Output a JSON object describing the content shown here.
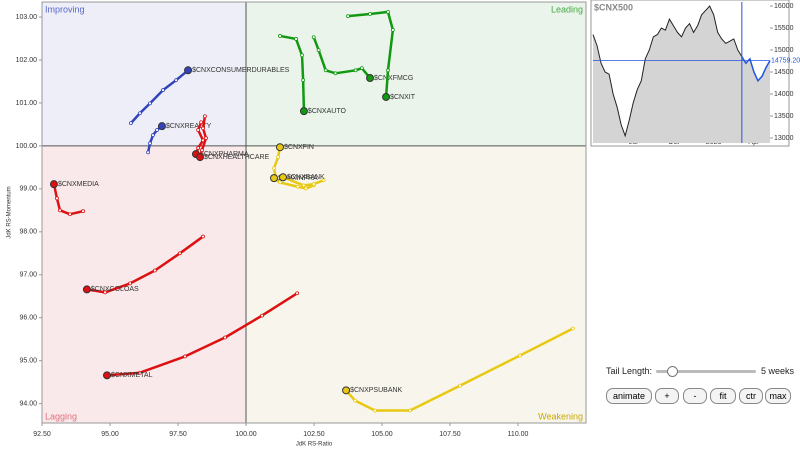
{
  "chart_data": [
    {
      "type": "rrg",
      "x_label": "JdK RS-Ratio",
      "y_label": "JdK RS-Momentum",
      "quadrants": {
        "improving": "Improving",
        "leading": "Leading",
        "lagging": "Lagging",
        "weakening": "Weakening"
      },
      "center_x": 100,
      "center_y": 100,
      "xlim": [
        92.5,
        112.5
      ],
      "ylim": [
        93.55,
        103.35
      ],
      "xticks": [
        {
          "value": 92.5,
          "label": "92.50"
        },
        {
          "value": 95,
          "label": "95.00"
        },
        {
          "value": 97.5,
          "label": "97.50"
        },
        {
          "value": 100,
          "label": "100.00"
        },
        {
          "value": 102.5,
          "label": "102.50"
        },
        {
          "value": 105,
          "label": "105.00"
        },
        {
          "value": 107.5,
          "label": "107.50"
        },
        {
          "value": 110,
          "label": "110.00"
        }
      ],
      "yticks": [
        {
          "value": 94,
          "label": "94.00"
        },
        {
          "value": 95,
          "label": "95.00"
        },
        {
          "value": 96,
          "label": "96.00"
        },
        {
          "value": 97,
          "label": "97.00"
        },
        {
          "value": 98,
          "label": "98.00"
        },
        {
          "value": 99,
          "label": "99.00"
        },
        {
          "value": 100,
          "label": "100.00"
        },
        {
          "value": 101,
          "label": "101.00"
        },
        {
          "value": 102,
          "label": "102.00"
        },
        {
          "value": 103,
          "label": "103.00"
        }
      ],
      "series": [
        {
          "name": "$CNXCONSUMERDURABLES",
          "color": "#3344bb",
          "x": [
            95.77,
            96.1,
            96.47,
            96.95,
            97.43,
            97.87
          ],
          "y": [
            100.53,
            100.76,
            100.99,
            101.3,
            101.53,
            101.76
          ]
        },
        {
          "name": "$CNXREALTY",
          "color": "#3344bb",
          "x": [
            96.4,
            96.47,
            96.58,
            96.73,
            96.91
          ],
          "y": [
            99.85,
            100.06,
            100.25,
            100.37,
            100.46
          ]
        },
        {
          "name": "$CNXFMCG",
          "color": "#119911",
          "x": [
            102.49,
            102.67,
            102.93,
            103.29,
            104.03,
            104.26,
            104.56
          ],
          "y": [
            102.53,
            102.23,
            101.76,
            101.69,
            101.76,
            101.81,
            101.58
          ]
        },
        {
          "name": "$CNXIT",
          "color": "#119911",
          "x": [
            103.75,
            104.56,
            105.22,
            105.4,
            105.22,
            105.15
          ],
          "y": [
            103.02,
            103.07,
            103.12,
            102.7,
            101.76,
            101.14
          ]
        },
        {
          "name": "$CNXAUTO",
          "color": "#119911",
          "x": [
            101.25,
            101.84,
            102.06,
            102.1,
            102.13
          ],
          "y": [
            102.56,
            102.49,
            102.11,
            101.53,
            100.81
          ]
        },
        {
          "name": "$CNXPHARMA",
          "color": "#dd1111",
          "x": [
            98.35,
            98.24,
            98.42,
            98.24,
            98.16
          ],
          "y": [
            100.55,
            100.37,
            100.13,
            99.95,
            99.81
          ]
        },
        {
          "name": "$CNXHEALTHCARE",
          "color": "#dd1111",
          "x": [
            98.49,
            98.42,
            98.53,
            98.38,
            98.31
          ],
          "y": [
            100.69,
            100.41,
            100.18,
            99.9,
            99.74
          ]
        },
        {
          "name": "$CNXMEDIA",
          "color": "#dd1111",
          "x": [
            94.01,
            93.53,
            93.16,
            93.05,
            92.94
          ],
          "y": [
            98.48,
            98.41,
            98.5,
            98.78,
            99.11
          ]
        },
        {
          "name": "$CNXCOLOAS",
          "color": "#dd1111",
          "x": [
            98.42,
            97.57,
            96.65,
            95.74,
            94.82,
            94.15
          ],
          "y": [
            97.89,
            97.5,
            97.1,
            96.8,
            96.59,
            96.66
          ]
        },
        {
          "name": "$CNXMETAL",
          "color": "#dd1111",
          "x": [
            101.88,
            100.59,
            99.23,
            97.76,
            96.1,
            94.89
          ],
          "y": [
            96.57,
            96.05,
            95.54,
            95.1,
            94.72,
            94.66
          ]
        },
        {
          "name": "$CNXFIN",
          "color": "#e8c810",
          "x": [
            101.1,
            101.03,
            101.18,
            101.25
          ],
          "y": [
            99.25,
            99.48,
            99.74,
            99.97
          ]
        },
        {
          "name": "$CNXINFRA",
          "color": "#e8c810",
          "x": [
            102.49,
            102.2,
            101.9,
            101.25,
            101.03
          ],
          "y": [
            99.08,
            99.01,
            99.05,
            99.15,
            99.25
          ]
        },
        {
          "name": "$CNXBANK",
          "color": "#e8c810",
          "x": [
            102.85,
            102.49,
            102.12,
            101.36
          ],
          "y": [
            99.2,
            99.11,
            99.08,
            99.27
          ]
        },
        {
          "name": "$CNXPSUBANK",
          "color": "#e8c810",
          "x": [
            112.02,
            110.07,
            107.87,
            106.03,
            104.74,
            104.01,
            103.68
          ],
          "y": [
            95.75,
            95.12,
            94.42,
            93.84,
            93.84,
            94.07,
            94.31
          ]
        }
      ]
    },
    {
      "type": "line",
      "title": "$CNX500",
      "categories": [
        null,
        null,
        null,
        null,
        null,
        null,
        null,
        null,
        null,
        null,
        "Jul",
        null,
        null,
        null,
        null,
        null,
        null,
        null,
        null,
        null,
        "Oct",
        null,
        null,
        null,
        null,
        null,
        null,
        null,
        null,
        null,
        "2023",
        null,
        null,
        null,
        null,
        null,
        null,
        null,
        null,
        null,
        "Apr",
        null,
        null,
        null,
        null
      ],
      "ylim": [
        12886,
        16091
      ],
      "yticks": [
        13000,
        13500,
        14000,
        14500,
        15000,
        15500,
        16000
      ],
      "reference_line": {
        "value": 14759.2,
        "label": "14759.20"
      },
      "series": [
        {
          "color": "#222222",
          "values": [
            15350,
            15100,
            14700,
            14500,
            14450,
            14000,
            13700,
            13300,
            13050,
            13400,
            13800,
            14100,
            14300,
            14800,
            15000,
            15300,
            15350,
            15500,
            15450,
            15700,
            15550,
            15400,
            15300,
            15500,
            15600,
            15400,
            15550,
            15800,
            15900,
            16000,
            15800,
            15400,
            15250,
            15150,
            15200,
            15250,
            15000,
            14850,
            null,
            null,
            null,
            null,
            null,
            null,
            null
          ]
        },
        {
          "color": "#2255dd",
          "values": [
            null,
            null,
            null,
            null,
            null,
            null,
            null,
            null,
            null,
            null,
            null,
            null,
            null,
            null,
            null,
            null,
            null,
            null,
            null,
            null,
            null,
            null,
            null,
            null,
            null,
            null,
            null,
            null,
            null,
            null,
            null,
            null,
            null,
            null,
            null,
            null,
            null,
            14850,
            14700,
            14800,
            14500,
            14300,
            14400,
            14600,
            14759.2
          ]
        }
      ]
    }
  ],
  "controls": {
    "tail_length_label": "Tail Length:",
    "tail_length_value": "5 weeks",
    "buttons": [
      "animate",
      "+",
      "-",
      "fit",
      "ctr",
      "max"
    ]
  }
}
